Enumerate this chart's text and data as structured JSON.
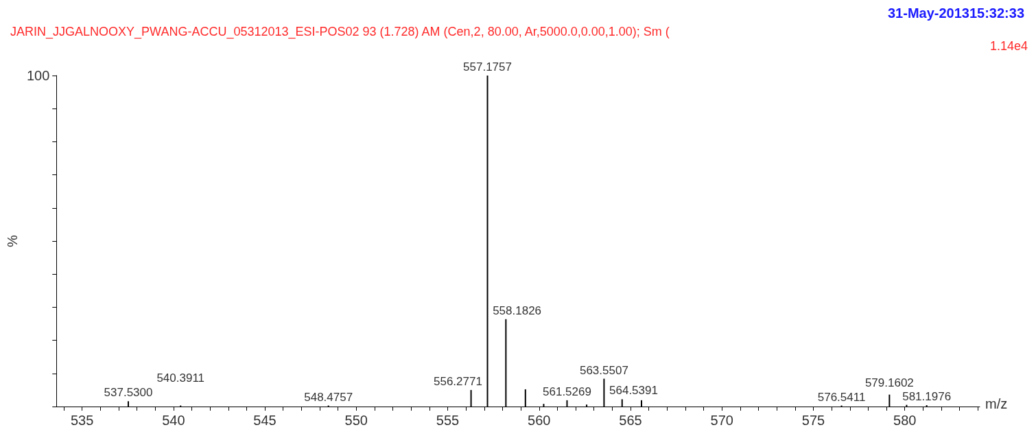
{
  "chart_data": {
    "type": "bar",
    "title": "31-May-201315:32:33",
    "subtitle": "JARIN_JJGALNOOXY_PWANG-ACCU_05312013_ESI-POS02 93 (1.728) AM (Cen,2, 80.00, Ar,5000.0,0.00,1.00); Sm (",
    "annotations": [
      "1.14e4",
      {
        "text": "537.5300",
        "x": 537.53,
        "y": 1.6
      },
      {
        "text": "540.3911",
        "x": 540.3911,
        "y": 0.3
      },
      {
        "text": "548.4757",
        "x": 548.4757,
        "y": 0.3
      },
      {
        "text": "556.2771",
        "x": 556.2771,
        "y": 5.0
      },
      {
        "text": "557.1757",
        "x": 557.1757,
        "y": 100
      },
      {
        "text": "558.1826",
        "x": 558.1826,
        "y": 26.4
      },
      {
        "text": "561.5269",
        "x": 561.5269,
        "y": 1.9
      },
      {
        "text": "563.5507",
        "x": 563.5507,
        "y": 8.4
      },
      {
        "text": "564.5391",
        "x": 564.5391,
        "y": 2.2
      },
      {
        "text": "576.5411",
        "x": 576.5411,
        "y": 0.3
      },
      {
        "text": "579.1602",
        "x": 579.1602,
        "y": 3.6
      },
      {
        "text": "581.1976",
        "x": 581.1976,
        "y": 0.4
      }
    ],
    "xlabel": "m/z",
    "ylabel": "%",
    "x": [
      537.53,
      540.3911,
      548.4757,
      556.2771,
      557.1757,
      558.1826,
      559.25,
      560.25,
      561.5269,
      562.6,
      563.5507,
      564.5391,
      565.6,
      576.5411,
      579.1602,
      580.1,
      581.1976
    ],
    "values": [
      1.6,
      0.3,
      0.3,
      5.0,
      100,
      26.4,
      5.2,
      0.8,
      1.9,
      0.6,
      8.4,
      2.2,
      1.9,
      0.3,
      3.6,
      0.5,
      0.4
    ],
    "color": "#000000",
    "xlim": [
      533.6,
      584.1
    ],
    "xticks": [
      {
        "value": 534,
        "label": null
      },
      535,
      {
        "value": 536,
        "label": null
      },
      {
        "value": 537,
        "label": null
      },
      {
        "value": 538,
        "label": null
      },
      {
        "value": 539,
        "label": null
      },
      540,
      {
        "value": 541,
        "label": null
      },
      {
        "value": 542,
        "label": null
      },
      {
        "value": 543,
        "label": null
      },
      {
        "value": 544,
        "label": null
      },
      545,
      {
        "value": 546,
        "label": null
      },
      {
        "value": 547,
        "label": null
      },
      {
        "value": 548,
        "label": null
      },
      {
        "value": 549,
        "label": null
      },
      550,
      {
        "value": 551,
        "label": null
      },
      {
        "value": 552,
        "label": null
      },
      {
        "value": 553,
        "label": null
      },
      {
        "value": 554,
        "label": null
      },
      555,
      {
        "value": 556,
        "label": null
      },
      {
        "value": 557,
        "label": null
      },
      {
        "value": 558,
        "label": null
      },
      {
        "value": 559,
        "label": null
      },
      560,
      {
        "value": 561,
        "label": null
      },
      {
        "value": 562,
        "label": null
      },
      {
        "value": 563,
        "label": null
      },
      {
        "value": 564,
        "label": null
      },
      565,
      {
        "value": 566,
        "label": null
      },
      {
        "value": 567,
        "label": null
      },
      {
        "value": 568,
        "label": null
      },
      {
        "value": 569,
        "label": null
      },
      570,
      {
        "value": 571,
        "label": null
      },
      {
        "value": 572,
        "label": null
      },
      {
        "value": 573,
        "label": null
      },
      {
        "value": 574,
        "label": null
      },
      575,
      {
        "value": 576,
        "label": null
      },
      {
        "value": 577,
        "label": null
      },
      {
        "value": 578,
        "label": null
      },
      {
        "value": 579,
        "label": null
      },
      580,
      {
        "value": 581,
        "label": null
      },
      {
        "value": 582,
        "label": null
      },
      {
        "value": 583,
        "label": null
      },
      {
        "value": 584,
        "label": null
      }
    ],
    "ylim": [
      0,
      100
    ],
    "yticks": [
      0,
      {
        "value": 10,
        "label": null
      },
      {
        "value": 20,
        "label": null
      },
      {
        "value": 30,
        "label": null
      },
      {
        "value": 40,
        "label": null
      },
      {
        "value": 50,
        "label": null
      },
      {
        "value": 60,
        "label": null
      },
      {
        "value": 70,
        "label": null
      },
      {
        "value": 80,
        "label": null
      },
      {
        "value": 90,
        "label": null
      },
      100
    ],
    "grid": false
  }
}
